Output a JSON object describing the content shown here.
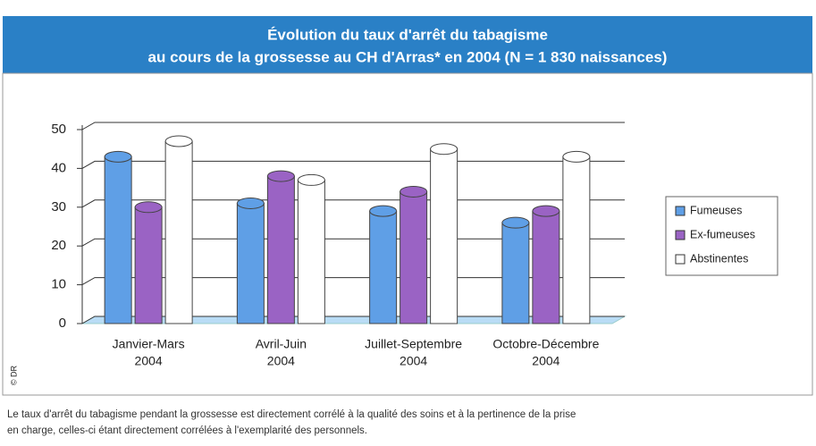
{
  "chart_data": {
    "type": "bar3d",
    "title": [
      "Évolution du taux d'arrêt du tabagisme",
      "au cours de la grossesse au CH d'Arras* en 2004 (N = 1 830 naissances)"
    ],
    "categories": [
      [
        "Janvier-Mars",
        "2004"
      ],
      [
        "Avril-Juin",
        "2004"
      ],
      [
        "Juillet-Septembre",
        "2004"
      ],
      [
        "Octobre-Décembre",
        "2004"
      ]
    ],
    "series": [
      {
        "name": "Fumeuses",
        "color": "#5f9fe6",
        "values": [
          43,
          31,
          29,
          26
        ]
      },
      {
        "name": "Ex-fumeuses",
        "color": "#9a63c4",
        "values": [
          30,
          38,
          34,
          29
        ]
      },
      {
        "name": "Abstinentes",
        "color": "#ffffff",
        "values": [
          47,
          37,
          45,
          43
        ]
      }
    ],
    "ylim": [
      0,
      50
    ],
    "yticks": [
      0,
      10,
      20,
      30,
      40,
      50
    ],
    "grid": true,
    "legend": "right",
    "credit": "© DR",
    "caption": [
      "Le taux d'arrêt du tabagisme pendant la grossesse est directement corrélé à la qualité des soins et à la pertinence de la prise",
      "en charge, celles-ci étant directement corrélées à l'exemplarité des personnels."
    ]
  }
}
